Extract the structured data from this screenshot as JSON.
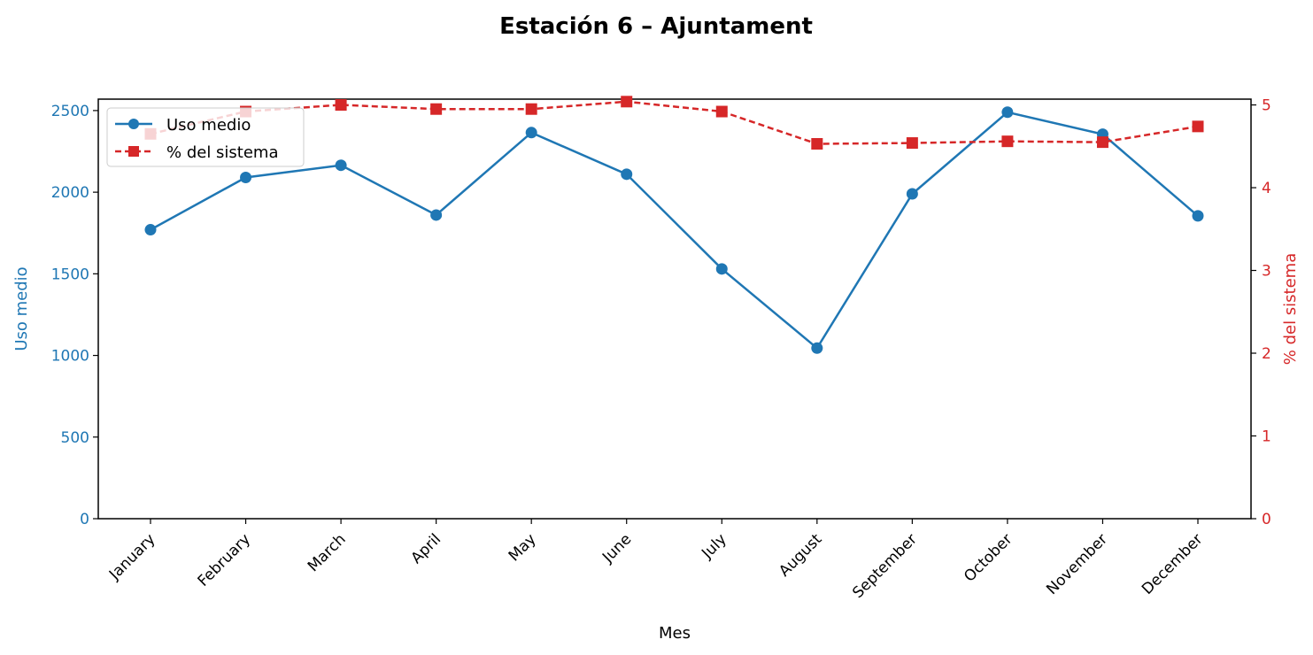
{
  "chart_data": {
    "type": "line",
    "title": "Estación 6 – Ajuntament",
    "xlabel": "Mes",
    "categories": [
      "January",
      "February",
      "March",
      "April",
      "May",
      "June",
      "July",
      "August",
      "September",
      "October",
      "November",
      "December"
    ],
    "y_left": {
      "label": "Uso medio",
      "ylim": [
        0,
        2570
      ],
      "ticks": [
        0,
        500,
        1000,
        1500,
        2000,
        2500
      ],
      "color": "#1f77b4"
    },
    "y_right": {
      "label": "% del sistema",
      "ylim": [
        0,
        5.07
      ],
      "ticks": [
        0,
        1,
        2,
        3,
        4,
        5
      ],
      "color": "#d62728"
    },
    "series": [
      {
        "name": "Uso medio",
        "axis": "left",
        "color": "#1f77b4",
        "line_style": "solid",
        "marker": "circle",
        "values": [
          1770,
          2090,
          2165,
          1860,
          2365,
          2110,
          1530,
          1045,
          1990,
          2490,
          2355,
          1855
        ]
      },
      {
        "name": "% del sistema",
        "axis": "right",
        "color": "#d62728",
        "line_style": "dashed",
        "marker": "square",
        "values": [
          4.65,
          4.92,
          5.0,
          4.95,
          4.95,
          5.04,
          4.92,
          4.53,
          4.54,
          4.56,
          4.55,
          4.74
        ]
      }
    ],
    "legend_placement": "upper-left",
    "grid": false
  }
}
